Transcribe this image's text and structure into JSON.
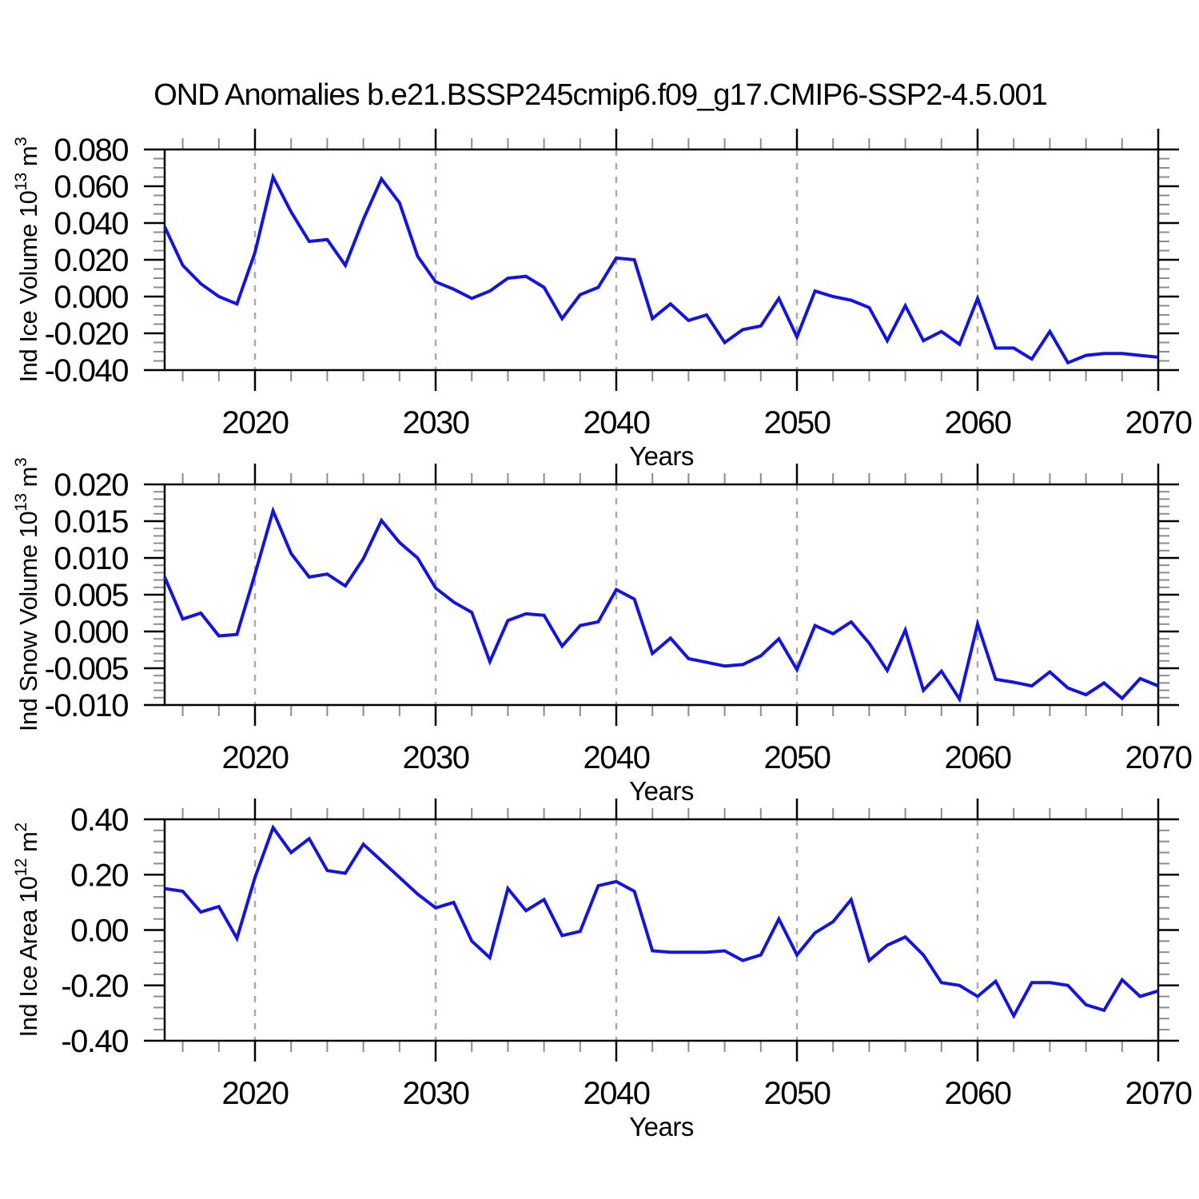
{
  "chart_title": "OND Anomalies b.e21.BSSP245cmip6.f09_g17.CMIP6-SSP2-4.5.001",
  "colors": {
    "line": "#1414e0",
    "axis": "#000000",
    "major_tick": "#000000",
    "minor_tick": "#8c8c8c",
    "grid": "#aaaaaa",
    "background": "#ffffff",
    "text": "#000000"
  },
  "years": [
    2015,
    2016,
    2017,
    2018,
    2019,
    2020,
    2021,
    2022,
    2023,
    2024,
    2025,
    2026,
    2027,
    2028,
    2029,
    2030,
    2031,
    2032,
    2033,
    2034,
    2035,
    2036,
    2037,
    2038,
    2039,
    2040,
    2041,
    2042,
    2043,
    2044,
    2045,
    2046,
    2047,
    2048,
    2049,
    2050,
    2051,
    2052,
    2053,
    2054,
    2055,
    2056,
    2057,
    2058,
    2059,
    2060,
    2061,
    2062,
    2063,
    2064,
    2065,
    2066,
    2067,
    2068,
    2069,
    2070
  ],
  "chart_data": [
    {
      "type": "line",
      "title": "",
      "ylabel": "Ind Ice Volume 10^13 m^3",
      "xlabel": "Years",
      "ylim": [
        -0.04,
        0.08
      ],
      "ytick_major": 0.02,
      "ytick_minor": 0.005,
      "ytick_labels": [
        "0.080",
        "0.060",
        "0.040",
        "0.020",
        "0.000",
        "-0.020",
        "-0.040"
      ],
      "xlim": [
        2015,
        2070
      ],
      "xticks": [
        2020,
        2030,
        2040,
        2050,
        2060,
        2070
      ],
      "xtick_labels": [
        "2020",
        "2030",
        "2040",
        "2050",
        "2060",
        "2070"
      ],
      "xtick_minor_step": 2,
      "grid_years": [
        2020,
        2030,
        2040,
        2050,
        2060
      ],
      "grid_style": "vertical-dashed",
      "legend": "none",
      "values": [
        0.038,
        0.017,
        0.007,
        0.0,
        -0.004,
        0.024,
        0.065,
        0.046,
        0.03,
        0.031,
        0.017,
        0.042,
        0.064,
        0.051,
        0.022,
        0.008,
        0.004,
        -0.001,
        0.003,
        0.01,
        0.011,
        0.005,
        -0.012,
        0.001,
        0.005,
        0.021,
        0.02,
        -0.012,
        -0.004,
        -0.013,
        -0.01,
        -0.025,
        -0.018,
        -0.016,
        -0.001,
        -0.022,
        0.003,
        0.0,
        -0.002,
        -0.006,
        -0.024,
        -0.005,
        -0.024,
        -0.019,
        -0.026,
        -0.001,
        -0.028,
        -0.028,
        -0.034,
        -0.019,
        -0.036,
        -0.032,
        -0.031,
        -0.031,
        -0.032,
        -0.033
      ]
    },
    {
      "type": "line",
      "title": "",
      "ylabel": "Ind Snow Volume 10^13 m^3",
      "xlabel": "Years",
      "ylim": [
        -0.01,
        0.02
      ],
      "ytick_major": 0.005,
      "ytick_minor": 0.001,
      "ytick_labels": [
        "0.020",
        "0.015",
        "0.010",
        "0.005",
        "0.000",
        "-0.005",
        "-0.010"
      ],
      "xlim": [
        2015,
        2070
      ],
      "xticks": [
        2020,
        2030,
        2040,
        2050,
        2060,
        2070
      ],
      "xtick_labels": [
        "2020",
        "2030",
        "2040",
        "2050",
        "2060",
        "2070"
      ],
      "xtick_minor_step": 2,
      "grid_years": [
        2020,
        2030,
        2040,
        2050,
        2060
      ],
      "grid_style": "vertical-dashed",
      "legend": "none",
      "values": [
        0.0074,
        0.0017,
        0.0025,
        -0.0006,
        -0.0004,
        0.0078,
        0.0164,
        0.0106,
        0.0074,
        0.0078,
        0.0062,
        0.0099,
        0.0151,
        0.0121,
        0.01,
        0.0059,
        0.004,
        0.0026,
        -0.0041,
        0.0015,
        0.0024,
        0.0022,
        -0.002,
        0.0008,
        0.0013,
        0.0057,
        0.0044,
        -0.003,
        -0.0009,
        -0.0037,
        -0.0042,
        -0.0047,
        -0.0045,
        -0.0033,
        -0.001,
        -0.0052,
        0.0008,
        -0.0003,
        0.0013,
        -0.0016,
        -0.0053,
        0.0002,
        -0.008,
        -0.0054,
        -0.0092,
        0.001,
        -0.0065,
        -0.0069,
        -0.0074,
        -0.0055,
        -0.0077,
        -0.0086,
        -0.007,
        -0.0091,
        -0.0064,
        -0.0074
      ]
    },
    {
      "type": "line",
      "title": "",
      "ylabel": "Ind Ice Area 10^12 m^2",
      "xlabel": "Years",
      "ylim": [
        -0.4,
        0.4
      ],
      "ytick_major": 0.2,
      "ytick_minor": 0.04,
      "ytick_labels": [
        "0.40",
        "0.20",
        "0.00",
        "-0.20",
        "-0.40"
      ],
      "xlim": [
        2015,
        2070
      ],
      "xticks": [
        2020,
        2030,
        2040,
        2050,
        2060,
        2070
      ],
      "xtick_labels": [
        "2020",
        "2030",
        "2040",
        "2050",
        "2060",
        "2070"
      ],
      "xtick_minor_step": 2,
      "grid_years": [
        2020,
        2030,
        2040,
        2050,
        2060
      ],
      "grid_style": "vertical-dashed",
      "legend": "none",
      "values": [
        0.15,
        0.14,
        0.065,
        0.085,
        -0.03,
        0.19,
        0.37,
        0.28,
        0.33,
        0.215,
        0.205,
        0.31,
        0.25,
        0.19,
        0.13,
        0.08,
        0.1,
        -0.04,
        -0.1,
        0.15,
        0.07,
        0.11,
        -0.02,
        -0.005,
        0.16,
        0.175,
        0.14,
        -0.075,
        -0.08,
        -0.08,
        -0.08,
        -0.075,
        -0.11,
        -0.09,
        0.04,
        -0.09,
        -0.01,
        0.03,
        0.11,
        -0.11,
        -0.055,
        -0.025,
        -0.09,
        -0.19,
        -0.2,
        -0.24,
        -0.185,
        -0.31,
        -0.19,
        -0.19,
        -0.2,
        -0.27,
        -0.29,
        -0.18,
        -0.24,
        -0.22
      ]
    }
  ]
}
